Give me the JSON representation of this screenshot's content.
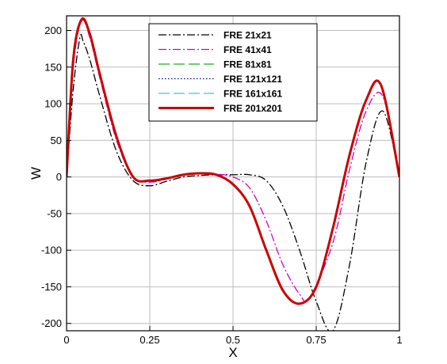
{
  "chart_data": {
    "type": "line",
    "title": "",
    "xlabel": "X",
    "ylabel": "W",
    "xlim": [
      0,
      1
    ],
    "ylim": [
      -210,
      220
    ],
    "grid": true,
    "legend_position": "top-center",
    "x_ticks": [
      0,
      0.25,
      0.5,
      0.75,
      1
    ],
    "x_tick_labels": [
      "0",
      "0.25",
      "0.5",
      "0.75",
      "1"
    ],
    "y_ticks": [
      -200,
      -150,
      -100,
      -50,
      0,
      50,
      100,
      150,
      200
    ],
    "y_tick_labels": [
      "-200",
      "-150",
      "-100",
      "-50",
      "0",
      "50",
      "100",
      "150",
      "200"
    ],
    "series": [
      {
        "name": "FRE 21x21",
        "color": "#000000",
        "dash": "dashdot",
        "x": [
          0,
          0.02,
          0.04,
          0.05,
          0.07,
          0.1,
          0.15,
          0.2,
          0.25,
          0.3,
          0.35,
          0.4,
          0.45,
          0.5,
          0.55,
          0.6,
          0.65,
          0.7,
          0.75,
          0.8,
          0.85,
          0.9,
          0.95,
          1.0
        ],
        "y": [
          0,
          120,
          190,
          185,
          160,
          110,
          35,
          -5,
          -12,
          -6,
          0,
          2,
          3,
          3,
          3,
          -5,
          -40,
          -100,
          -170,
          -210,
          -120,
          20,
          90,
          0
        ]
      },
      {
        "name": "FRE 41x41",
        "color": "#cc00cc",
        "dash": "dashdot",
        "x": [
          0,
          0.02,
          0.045,
          0.07,
          0.1,
          0.15,
          0.2,
          0.25,
          0.3,
          0.35,
          0.4,
          0.45,
          0.5,
          0.55,
          0.6,
          0.65,
          0.7,
          0.73,
          0.8,
          0.85,
          0.9,
          0.95,
          1.0
        ],
        "y": [
          0,
          150,
          213,
          190,
          135,
          50,
          0,
          -7,
          -3,
          3,
          5,
          4,
          0,
          -15,
          -60,
          -120,
          -160,
          -165,
          -90,
          10,
          90,
          110,
          0
        ]
      },
      {
        "name": "FRE 81x81",
        "color": "#22aa22",
        "dash": "longdash",
        "x": [
          0,
          0.02,
          0.045,
          0.07,
          0.1,
          0.15,
          0.2,
          0.25,
          0.3,
          0.35,
          0.4,
          0.45,
          0.5,
          0.55,
          0.6,
          0.65,
          0.7,
          0.75,
          0.8,
          0.85,
          0.9,
          0.945,
          1.0
        ],
        "y": [
          0,
          160,
          215,
          195,
          140,
          55,
          0,
          -5,
          -2,
          3,
          5,
          3,
          -10,
          -40,
          -100,
          -155,
          -173,
          -150,
          -70,
          30,
          105,
          125,
          0
        ]
      },
      {
        "name": "FRE 121x121",
        "color": "#000088",
        "dash": "dotted",
        "x": [
          0,
          0.02,
          0.045,
          0.07,
          0.1,
          0.15,
          0.2,
          0.25,
          0.3,
          0.35,
          0.4,
          0.45,
          0.5,
          0.55,
          0.6,
          0.65,
          0.7,
          0.75,
          0.8,
          0.85,
          0.9,
          0.945,
          1.0
        ],
        "y": [
          0,
          160,
          215,
          195,
          140,
          55,
          0,
          -5,
          -2,
          3,
          5,
          3,
          -10,
          -40,
          -100,
          -155,
          -173,
          -150,
          -70,
          30,
          105,
          125,
          0
        ]
      },
      {
        "name": "FRE 161x161",
        "color": "#33cccc",
        "dash": "longdash",
        "x": [
          0,
          0.02,
          0.045,
          0.07,
          0.1,
          0.15,
          0.2,
          0.25,
          0.3,
          0.35,
          0.4,
          0.45,
          0.5,
          0.55,
          0.6,
          0.65,
          0.7,
          0.75,
          0.8,
          0.85,
          0.9,
          0.945,
          1.0
        ],
        "y": [
          0,
          160,
          215,
          195,
          140,
          55,
          0,
          -5,
          -2,
          3,
          5,
          3,
          -10,
          -40,
          -100,
          -155,
          -173,
          -150,
          -70,
          30,
          105,
          125,
          0
        ]
      },
      {
        "name": "FRE 201x201",
        "color": "#cc0000",
        "dash": "solid",
        "x": [
          0,
          0.02,
          0.045,
          0.07,
          0.1,
          0.15,
          0.2,
          0.25,
          0.3,
          0.35,
          0.4,
          0.45,
          0.5,
          0.55,
          0.6,
          0.65,
          0.7,
          0.75,
          0.8,
          0.85,
          0.9,
          0.945,
          1.0
        ],
        "y": [
          0,
          160,
          215,
          195,
          140,
          55,
          0,
          -5,
          -2,
          3,
          5,
          3,
          -10,
          -40,
          -100,
          -155,
          -173,
          -150,
          -70,
          30,
          105,
          125,
          0
        ]
      }
    ]
  }
}
